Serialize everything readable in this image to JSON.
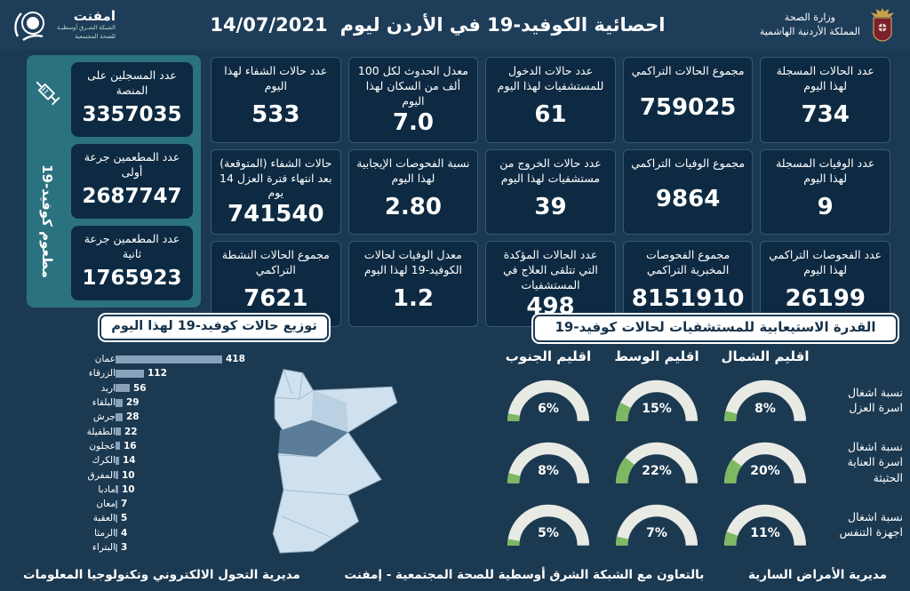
{
  "colors": {
    "page_bg": "#1b3951",
    "header_bg": "#1e3d59",
    "card_bg": "#0d2a42",
    "teal_panel": "#2b7280",
    "gauge_green": "#7db863",
    "gauge_track": "#e8eae4",
    "bar_color": "#87a2ba"
  },
  "header": {
    "title": "احصائية الكوفيد-19 في الأردن ليوم",
    "date": "14/07/2021",
    "ministry_line1": "وزارة الصحة",
    "ministry_line2": "المملكة الأردنية الهاشمية",
    "logo_name": "امفنت",
    "logo_sub1": "الشبكة الشـرق أوسطيـة",
    "logo_sub2": "للصحة المجتمعية"
  },
  "vaccine_panel": {
    "side_label": "مطعوم كوفيد-19",
    "cards": [
      {
        "label": "عدد المسجلين على المنصة",
        "value": "3357035"
      },
      {
        "label": "عدد المطعمين جرعة أولى",
        "value": "2687747"
      },
      {
        "label": "عدد المطعمين جرعة ثانية",
        "value": "1765923"
      }
    ]
  },
  "stats_cards": [
    {
      "label": "عدد الحالات المسجلة لهذا اليوم",
      "value": "734"
    },
    {
      "label": "مجموع الحالات التراكمي",
      "value": "759025"
    },
    {
      "label": "عدد حالات الدخول للمستشفيات لهذا اليوم",
      "value": "61"
    },
    {
      "label": "معدل الحدوث لكل 100 ألف من السكان لهذا اليوم",
      "value": "7.0"
    },
    {
      "label": "عدد حالات الشفاء لهذا اليوم",
      "value": "533"
    },
    {
      "label": "عدد الوفيات المسجلة لهذا اليوم",
      "value": "9"
    },
    {
      "label": "مجموع الوفيات التراكمي",
      "value": "9864"
    },
    {
      "label": "عدد حالات الخروج من مستشفيات لهذا اليوم",
      "value": "39"
    },
    {
      "label": "نسبة الفحوصات الإيجابية لهذا اليوم",
      "value": "2.80"
    },
    {
      "label": "حالات الشفاء (المتوقعة) بعد انتهاء فترة العزل 14 يوم",
      "value": "741540"
    },
    {
      "label": "عدد الفحوصات التراكمي لهذا اليوم",
      "value": "26199"
    },
    {
      "label": "مجموع الفحوصات المخبرية التراكمي",
      "value": "8151910"
    },
    {
      "label": "عدد الحالات المؤكدة التي تتلقى العلاج في المستشفيات",
      "value": "498"
    },
    {
      "label": "معدل الوفيات لحالات الكوفيد-19 لهذا اليوم",
      "value": "1.2"
    },
    {
      "label": "مجموع الحالات النشطة التراكمي",
      "value": "7621"
    }
  ],
  "chart_data": [
    {
      "type": "bar",
      "title": "توزيع حالات كوفيد-19 لهذا اليوم",
      "orientation": "horizontal",
      "categories": [
        "عمان",
        "الزرقاء",
        "اربد",
        "البلقاء",
        "جرش",
        "الطفيلة",
        "عجلون",
        "الكرك",
        "المفرق",
        "مادبا",
        "معان",
        "العقبة",
        "الرمثا",
        "البتراء"
      ],
      "values": [
        418,
        112,
        56,
        29,
        28,
        22,
        16,
        14,
        10,
        10,
        7,
        5,
        4,
        3
      ],
      "xlim": [
        0,
        418
      ],
      "bar_color": "#87a2ba"
    },
    {
      "type": "gauge",
      "title": "القدرة الاستيعابية للمستشفيات لحالات كوفيد-19",
      "columns": [
        "اقليم الشمال",
        "اقليم الوسط",
        "اقليم الجنوب"
      ],
      "rows": [
        {
          "label": "نسبة اشغال اسرة العزل",
          "values": [
            8,
            15,
            6
          ]
        },
        {
          "label": "نسبة اشغال اسرة العناية الحثيثة",
          "values": [
            20,
            22,
            8
          ]
        },
        {
          "label": "نسبة اشغال اجهزة التنفس",
          "values": [
            11,
            7,
            5
          ]
        }
      ],
      "unit": "%",
      "range": [
        0,
        100
      ],
      "green": "#7db863",
      "track": "#e8eae4"
    }
  ],
  "map": {
    "base": "#cfe0ee",
    "amman": "#5b7d99",
    "mid": "#b7cfe2",
    "border": "#8fa9bf"
  },
  "footer": {
    "right": "مديرية الأمراض السارية",
    "center": "بالتعاون مع الشبكة الشرق أوسطية للصحة المجتمعية - إمفنت",
    "left": "مديرية التحول الالكتروني وتكنولوجيا المعلومات"
  }
}
